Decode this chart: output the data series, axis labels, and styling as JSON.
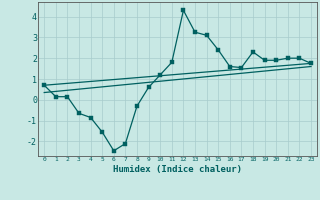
{
  "xlabel": "Humidex (Indice chaleur)",
  "ylabel": "",
  "xlim": [
    -0.5,
    23.5
  ],
  "ylim": [
    -2.7,
    4.7
  ],
  "xticks": [
    0,
    1,
    2,
    3,
    4,
    5,
    6,
    7,
    8,
    9,
    10,
    11,
    12,
    13,
    14,
    15,
    16,
    17,
    18,
    19,
    20,
    21,
    22,
    23
  ],
  "yticks": [
    -2,
    -1,
    0,
    1,
    2,
    3,
    4
  ],
  "background_color": "#c8e8e4",
  "grid_color": "#a8cccc",
  "line_color": "#006060",
  "line1_x": [
    0,
    1,
    2,
    3,
    4,
    5,
    6,
    7,
    8,
    9,
    10,
    11,
    12,
    13,
    14,
    15,
    16,
    17,
    18,
    19,
    20,
    21,
    22,
    23
  ],
  "line1_y": [
    0.7,
    0.15,
    0.15,
    -0.65,
    -0.85,
    -1.55,
    -2.45,
    -2.1,
    -0.3,
    0.6,
    1.2,
    1.8,
    4.3,
    3.25,
    3.1,
    2.4,
    1.6,
    1.55,
    2.3,
    1.9,
    1.9,
    2.0,
    2.0,
    1.75
  ],
  "line2_x": [
    0,
    23
  ],
  "line2_y": [
    0.35,
    1.6
  ],
  "line3_x": [
    0,
    23
  ],
  "line3_y": [
    0.7,
    1.75
  ]
}
